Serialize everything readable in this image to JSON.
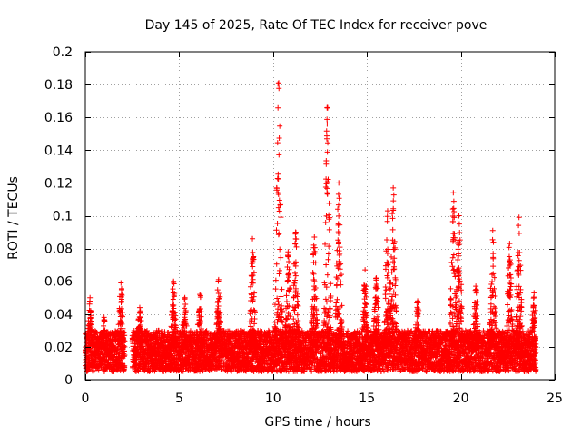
{
  "chart_data": {
    "type": "scatter",
    "title": "Day 145 of 2025, Rate Of TEC Index for receiver pove",
    "xlabel": "GPS time / hours",
    "ylabel": "ROTI / TECUs",
    "xlim": [
      0,
      25
    ],
    "ylim": [
      0,
      0.2
    ],
    "x_ticks": [
      0,
      5,
      10,
      15,
      20,
      25
    ],
    "x_tick_labels": [
      "0",
      "5",
      "10",
      "15",
      "20",
      "25"
    ],
    "y_ticks": [
      0,
      0.02,
      0.04,
      0.06,
      0.08,
      0.1,
      0.12,
      0.14,
      0.16,
      0.18,
      0.2
    ],
    "y_tick_labels": [
      "0",
      "0.02",
      "0.04",
      "0.06",
      "0.08",
      "0.1",
      "0.12",
      "0.14",
      "0.16",
      "0.18",
      "0.2"
    ],
    "grid": true,
    "marker": "+",
    "color": "#ff0000",
    "gaps": [
      [
        2.1,
        2.5
      ]
    ],
    "data_x_range": [
      0,
      24
    ],
    "typical_y_range": [
      0.005,
      0.03
    ],
    "peaks": [
      {
        "x": 0.25,
        "y": 0.05
      },
      {
        "x": 1.0,
        "y": 0.038
      },
      {
        "x": 1.9,
        "y": 0.059
      },
      {
        "x": 2.9,
        "y": 0.044
      },
      {
        "x": 4.7,
        "y": 0.06
      },
      {
        "x": 5.3,
        "y": 0.05
      },
      {
        "x": 6.1,
        "y": 0.052
      },
      {
        "x": 7.1,
        "y": 0.061
      },
      {
        "x": 8.9,
        "y": 0.086
      },
      {
        "x": 10.3,
        "y": 0.181
      },
      {
        "x": 10.8,
        "y": 0.078
      },
      {
        "x": 11.2,
        "y": 0.09
      },
      {
        "x": 12.2,
        "y": 0.087
      },
      {
        "x": 12.9,
        "y": 0.166
      },
      {
        "x": 13.5,
        "y": 0.12
      },
      {
        "x": 14.9,
        "y": 0.067
      },
      {
        "x": 15.5,
        "y": 0.062
      },
      {
        "x": 16.1,
        "y": 0.103
      },
      {
        "x": 16.4,
        "y": 0.117
      },
      {
        "x": 17.7,
        "y": 0.048
      },
      {
        "x": 19.6,
        "y": 0.114
      },
      {
        "x": 19.9,
        "y": 0.1
      },
      {
        "x": 20.8,
        "y": 0.057
      },
      {
        "x": 21.7,
        "y": 0.091
      },
      {
        "x": 22.6,
        "y": 0.083
      },
      {
        "x": 23.1,
        "y": 0.099
      },
      {
        "x": 23.9,
        "y": 0.053
      }
    ]
  }
}
